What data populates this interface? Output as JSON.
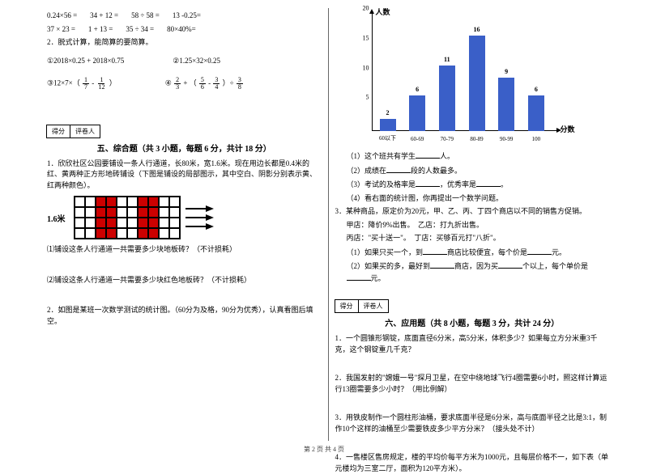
{
  "leftCol": {
    "arithRows": [
      [
        "0.24×56 =",
        "34 + 12 =",
        "58 ÷ 58 =",
        "13 -0.25="
      ],
      [
        "37 × 23 =",
        "1 + 13 =",
        "35 ÷ 34 =",
        "80×40%="
      ]
    ],
    "q2": "2．脱式计算，能简算的要简算。",
    "expr1": "①2018×0.25 + 2018×0.75",
    "expr2": "②1.25×32×0.25",
    "expr3_prefix": "③12×7×（",
    "expr3_f1n": "1",
    "expr3_f1d": "7",
    "expr3_mid": " - ",
    "expr3_f2n": "1",
    "expr3_f2d": "12",
    "expr3_suffix": "）",
    "expr4_prefix": "④",
    "expr4_f1n": "2",
    "expr4_f1d": "3",
    "expr4_a": " + （",
    "expr4_f2n": "5",
    "expr4_f2d": "6",
    "expr4_b": " - ",
    "expr4_f3n": "3",
    "expr4_f3d": "4",
    "expr4_c": "）÷ ",
    "expr4_f4n": "3",
    "expr4_f4d": "8",
    "score_a": "得分",
    "score_b": "评卷人",
    "sec5_title": "五、综合题（共 3 小题，每题 6 分，共计 18 分）",
    "sec5_q1": "1．欣欣社区公园要铺设一条人行通道，长80米，宽1.6米。现在用边长都是0.4米的红、黄两种正方形地砖铺设（下图是铺设的局部图示，其中空白、阴影分别表示黄、红两种颜色）。",
    "dim": "1.6米",
    "sec5_q1a": "⑴铺设这条人行通道一共需要多少块地板砖？（不计损耗）",
    "sec5_q1b": "⑵铺设这条人行通道一共需要多少块红色地板砖？（不计损耗）",
    "sec5_q2": "2．如图是某班一次数学测试的统计图。（60分为及格，90分为优秀），认真看图后填空。"
  },
  "chart": {
    "y_title": "人数",
    "x_title": "分数",
    "ymax": 20,
    "categories": [
      "60以下",
      "60-69",
      "70-79",
      "80-89",
      "90-99",
      "100"
    ],
    "values": [
      2,
      6,
      11,
      16,
      9,
      6
    ],
    "bar_color": "#3a5fc8",
    "yticks": [
      5,
      10,
      15,
      20
    ]
  },
  "rightCol": {
    "sub1": "（1）这个班共有学生",
    "sub1b": "人。",
    "sub2a": "（2）成绩在",
    "sub2b": "段的人数最多。",
    "sub3a": "（3）考试的及格率是",
    "sub3b": "，优秀率是",
    "sub3c": "。",
    "sub4": "（4）看右面的统计图，你再提出一个数学问题。",
    "q3": "3．某种商品，原定价为20元，甲、乙、丙、丁四个商店以不同的销售方促销。",
    "q3a": "甲店：降价9%出售。　乙店：打九折出售。",
    "q3b": "丙店：\"买十送一\"。　丁店：买够百元打\"八折\"。",
    "q3c_1": "（1）如果只买一个，到",
    "q3c_2": "商店比较便宜，每个价是",
    "q3c_3": "元。",
    "q3d_1": "（2）如果买的多，最好到",
    "q3d_2": "商店，因为买",
    "q3d_3": "个以上，每个单价是",
    "q3d_4": "元。",
    "score_a": "得分",
    "score_b": "评卷人",
    "sec6_title": "六、应用题（共 8 小题，每题 3 分，共计 24 分）",
    "q6_1": "1．一个圆锥形钢锭，底面直径6分米，高5分米，体积多少？如果每立方分米重3千克，这个钢锭重几千克？",
    "q6_2": "2．我国发射的\"嫦娥一号\"探月卫星，在空中绕地球飞行4圈需要6小时，照这样计算运行13圈需要多少小时？（用比例解）",
    "q6_3": "3．用铁皮制作一个圆柱形油桶，要求底面半径是6分米，高与底面半径之比是3:1，制作10个这样的油桶至少需要铁皮多少平方分米？（接头处不计）",
    "q6_4": "4．一售楼区售房规定，楼的平均价每平方米为1000元，且每层价格不一，如下表（单元楼均为三室二厅，面积为120平方米）。"
  },
  "footer": "第 2 页 共 4 页"
}
